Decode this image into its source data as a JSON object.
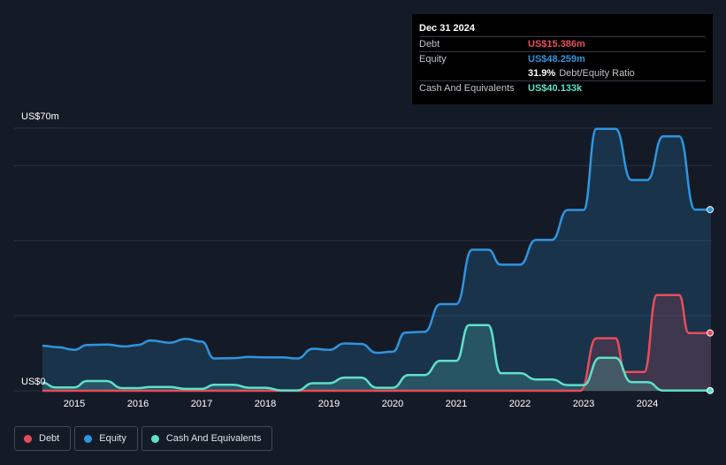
{
  "tooltip": {
    "date": "Dec 31 2024",
    "rows": [
      {
        "label": "Debt",
        "value": "US$15.386m",
        "color": "#e84c5c"
      },
      {
        "label": "Equity",
        "value": "US$48.259m",
        "color": "#2f95e0"
      },
      {
        "label": "",
        "value": "31.9%",
        "suffix": "Debt/Equity Ratio",
        "color": "#ffffff"
      },
      {
        "label": "Cash And Equivalents",
        "value": "US$40.133k",
        "color": "#5fe0c8"
      }
    ]
  },
  "legend": [
    {
      "label": "Debt",
      "color": "#e84c5c"
    },
    {
      "label": "Equity",
      "color": "#2f95e0"
    },
    {
      "label": "Cash And Equivalents",
      "color": "#5fe0c8"
    }
  ],
  "chart_data": {
    "type": "area",
    "ylabel_top": "US$70m",
    "ylabel_bottom": "US$0",
    "ylim": [
      0,
      70
    ],
    "xlim": [
      2014.5,
      2025.0
    ],
    "x_ticks": [
      "2015",
      "2016",
      "2017",
      "2018",
      "2019",
      "2020",
      "2021",
      "2022",
      "2023",
      "2024"
    ],
    "grid": true,
    "series": [
      {
        "name": "Debt",
        "color": "#e84c5c",
        "points": [
          [
            2014.5,
            0
          ],
          [
            2022.95,
            0
          ],
          [
            2023.2,
            14
          ],
          [
            2023.5,
            14
          ],
          [
            2023.65,
            5
          ],
          [
            2023.95,
            5
          ],
          [
            2024.15,
            25.5
          ],
          [
            2024.5,
            25.5
          ],
          [
            2024.65,
            15.4
          ],
          [
            2025.0,
            15.4
          ]
        ]
      },
      {
        "name": "Equity",
        "color": "#2f95e0",
        "points": [
          [
            2014.5,
            12
          ],
          [
            2014.75,
            11.6
          ],
          [
            2015.0,
            10.9
          ],
          [
            2015.2,
            12.2
          ],
          [
            2015.5,
            12.3
          ],
          [
            2015.8,
            11.8
          ],
          [
            2016.0,
            12.2
          ],
          [
            2016.2,
            13.4
          ],
          [
            2016.5,
            12.8
          ],
          [
            2016.75,
            13.8
          ],
          [
            2017.0,
            13.1
          ],
          [
            2017.2,
            8.6
          ],
          [
            2017.5,
            8.7
          ],
          [
            2017.75,
            9
          ],
          [
            2018.0,
            8.9
          ],
          [
            2018.25,
            8.9
          ],
          [
            2018.5,
            8.6
          ],
          [
            2018.75,
            11.2
          ],
          [
            2019.0,
            10.9
          ],
          [
            2019.25,
            12.6
          ],
          [
            2019.5,
            12.5
          ],
          [
            2019.75,
            10.1
          ],
          [
            2020.0,
            10.4
          ],
          [
            2020.2,
            15.5
          ],
          [
            2020.5,
            15.7
          ],
          [
            2020.75,
            23.1
          ],
          [
            2021.0,
            23.1
          ],
          [
            2021.25,
            37.6
          ],
          [
            2021.5,
            37.6
          ],
          [
            2021.7,
            33.6
          ],
          [
            2022.0,
            33.6
          ],
          [
            2022.25,
            40.2
          ],
          [
            2022.5,
            40.2
          ],
          [
            2022.75,
            48.2
          ],
          [
            2023.0,
            48.2
          ],
          [
            2023.2,
            69.8
          ],
          [
            2023.5,
            69.8
          ],
          [
            2023.75,
            56.2
          ],
          [
            2024.0,
            56.2
          ],
          [
            2024.25,
            67.8
          ],
          [
            2024.5,
            67.8
          ],
          [
            2024.75,
            48.3
          ],
          [
            2025.0,
            48.3
          ]
        ]
      },
      {
        "name": "Cash And Equivalents",
        "color": "#5fe0c8",
        "points": [
          [
            2014.5,
            2.2
          ],
          [
            2014.7,
            0.9
          ],
          [
            2015.0,
            0.9
          ],
          [
            2015.2,
            2.6
          ],
          [
            2015.5,
            2.6
          ],
          [
            2015.75,
            0.7
          ],
          [
            2016.0,
            0.7
          ],
          [
            2016.2,
            1
          ],
          [
            2016.5,
            1
          ],
          [
            2016.75,
            0.5
          ],
          [
            2017.0,
            0.5
          ],
          [
            2017.2,
            1.6
          ],
          [
            2017.5,
            1.6
          ],
          [
            2017.75,
            0.8
          ],
          [
            2018.0,
            0.8
          ],
          [
            2018.25,
            0.1
          ],
          [
            2018.5,
            0.1
          ],
          [
            2018.75,
            2
          ],
          [
            2019.0,
            2
          ],
          [
            2019.25,
            3.5
          ],
          [
            2019.5,
            3.5
          ],
          [
            2019.75,
            0.8
          ],
          [
            2020.0,
            0.8
          ],
          [
            2020.25,
            4.2
          ],
          [
            2020.5,
            4.2
          ],
          [
            2020.75,
            8
          ],
          [
            2021.0,
            8
          ],
          [
            2021.2,
            17.5
          ],
          [
            2021.5,
            17.5
          ],
          [
            2021.7,
            4.7
          ],
          [
            2022.0,
            4.7
          ],
          [
            2022.25,
            3
          ],
          [
            2022.5,
            3
          ],
          [
            2022.75,
            1.5
          ],
          [
            2023.0,
            1.5
          ],
          [
            2023.25,
            8.8
          ],
          [
            2023.5,
            8.8
          ],
          [
            2023.75,
            2.3
          ],
          [
            2024.0,
            2.3
          ],
          [
            2024.25,
            0.04
          ],
          [
            2025.0,
            0.04
          ]
        ]
      }
    ]
  }
}
